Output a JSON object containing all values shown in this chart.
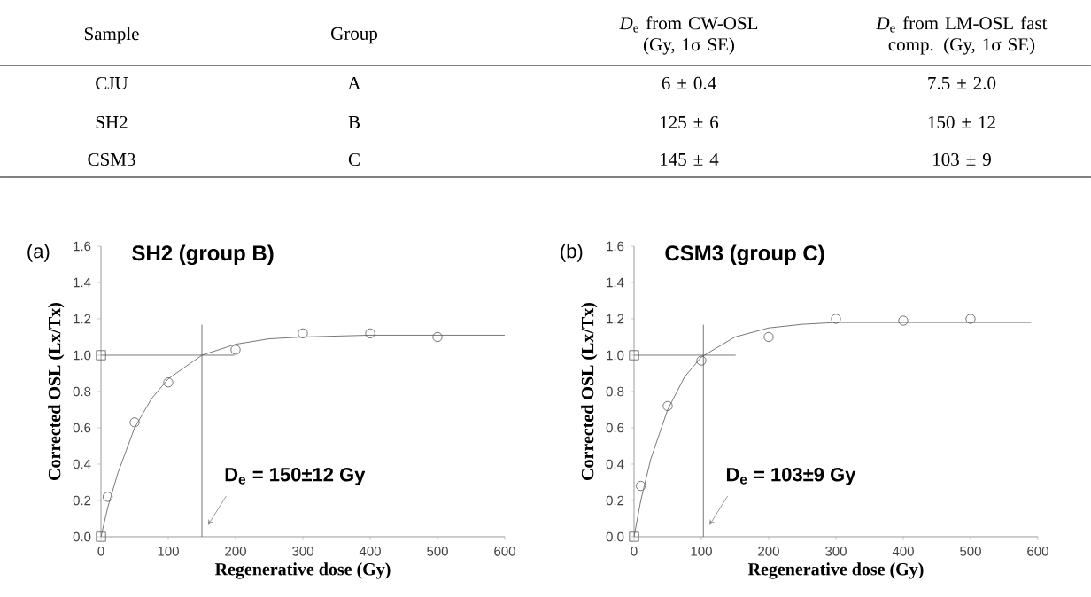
{
  "chart_data": [
    {
      "type": "other",
      "annotations": [
        "Sample",
        "Group",
        "*D*$_{e}$ from CW-OSL (Gy, 1σ SE)",
        "*D*$_{e}$ from LM-OSL fast comp. (Gy, 1σ SE)",
        "CJU",
        "A",
        "6 ± 0.4",
        "7.5 ± 2.0",
        "SH2",
        "B",
        "125 ± 6",
        "150 ± 12",
        "CSM3",
        "C",
        "145 ± 4",
        "103 ± 9"
      ]
    },
    {
      "type": "scatter",
      "title": "SH2 (group B)",
      "xlabel": "Regenerative dose (Gy)",
      "ylabel": "Corrected OSL (Lx/Tx)",
      "xlim": [
        0,
        600
      ],
      "xticks": [
        0,
        100,
        200,
        300,
        400,
        500,
        600
      ],
      "ylim": [
        0,
        1.6
      ],
      "yticks": [
        {
          "value": 0,
          "label": "0.0"
        },
        {
          "value": 0.2,
          "label": "0.2"
        },
        {
          "value": 0.4,
          "label": "0.4"
        },
        {
          "value": 0.6,
          "label": "0.6"
        },
        {
          "value": 0.8,
          "label": "0.8"
        },
        {
          "value": 1.0,
          "label": "1.0"
        },
        {
          "value": 1.2,
          "label": "1.2"
        },
        {
          "value": 1.4,
          "label": "1.4"
        },
        {
          "value": 1.6,
          "label": "1.6"
        }
      ],
      "series": [
        {
          "type": "line",
          "color": "#555555",
          "marker": "none",
          "x": [
            0,
            10,
            25,
            50,
            75,
            100,
            150,
            200,
            250,
            300,
            400,
            600
          ],
          "values": [
            0,
            0.16,
            0.35,
            0.6,
            0.76,
            0.87,
            1.0,
            1.06,
            1.09,
            1.1,
            1.11,
            1.11
          ]
        },
        {
          "type": "scatter",
          "color": "#555555",
          "marker": "circle",
          "x": [
            10,
            50,
            100,
            200,
            300,
            400,
            500
          ],
          "values": [
            0.22,
            0.63,
            0.85,
            1.03,
            1.12,
            1.12,
            1.1
          ]
        },
        {
          "type": "scatter",
          "color": "#555555",
          "marker": "square",
          "x": [
            0,
            0
          ],
          "values": [
            1.0,
            0.0
          ]
        }
      ],
      "ref_lines": [
        {
          "axis": "x",
          "value": 150,
          "color": "#555555"
        },
        {
          "axis": "y",
          "value": 1.0,
          "color": "#555555"
        }
      ],
      "annotations": [
        "(a)",
        {
          "text": "D$_{e}$ = 150±12 Gy",
          "x": 150,
          "y": 0
        }
      ]
    },
    {
      "type": "scatter",
      "title": "CSM3 (group C)",
      "xlabel": "Regenerative dose (Gy)",
      "ylabel": "Corrected OSL (Lx/Tx)",
      "xlim": [
        0,
        600
      ],
      "xticks": [
        0,
        100,
        200,
        300,
        400,
        500,
        600
      ],
      "ylim": [
        0,
        1.6
      ],
      "yticks": [
        {
          "value": 0,
          "label": "0.0"
        },
        {
          "value": 0.2,
          "label": "0.2"
        },
        {
          "value": 0.4,
          "label": "0.4"
        },
        {
          "value": 0.6,
          "label": "0.6"
        },
        {
          "value": 0.8,
          "label": "0.8"
        },
        {
          "value": 1.0,
          "label": "1.0"
        },
        {
          "value": 1.2,
          "label": "1.2"
        },
        {
          "value": 1.4,
          "label": "1.4"
        },
        {
          "value": 1.6,
          "label": "1.6"
        }
      ],
      "series": [
        {
          "type": "line",
          "color": "#555555",
          "marker": "none",
          "x": [
            0,
            10,
            25,
            50,
            75,
            100,
            150,
            200,
            250,
            300,
            400,
            590
          ],
          "values": [
            0,
            0.2,
            0.43,
            0.7,
            0.88,
            0.99,
            1.1,
            1.15,
            1.17,
            1.18,
            1.18,
            1.18
          ]
        },
        {
          "type": "scatter",
          "color": "#555555",
          "marker": "circle",
          "x": [
            10,
            50,
            100,
            200,
            300,
            400,
            500
          ],
          "values": [
            0.28,
            0.72,
            0.97,
            1.1,
            1.2,
            1.19,
            1.2
          ]
        },
        {
          "type": "scatter",
          "color": "#555555",
          "marker": "square",
          "x": [
            0,
            0
          ],
          "values": [
            1.0,
            0.0
          ]
        }
      ],
      "ref_lines": [
        {
          "axis": "x",
          "value": 103,
          "color": "#555555"
        },
        {
          "axis": "y",
          "value": 1.0,
          "color": "#555555"
        }
      ],
      "annotations": [
        "(b)",
        {
          "text": "D$_{e}$ = 103±9 Gy",
          "x": 103,
          "y": 0
        }
      ]
    }
  ]
}
